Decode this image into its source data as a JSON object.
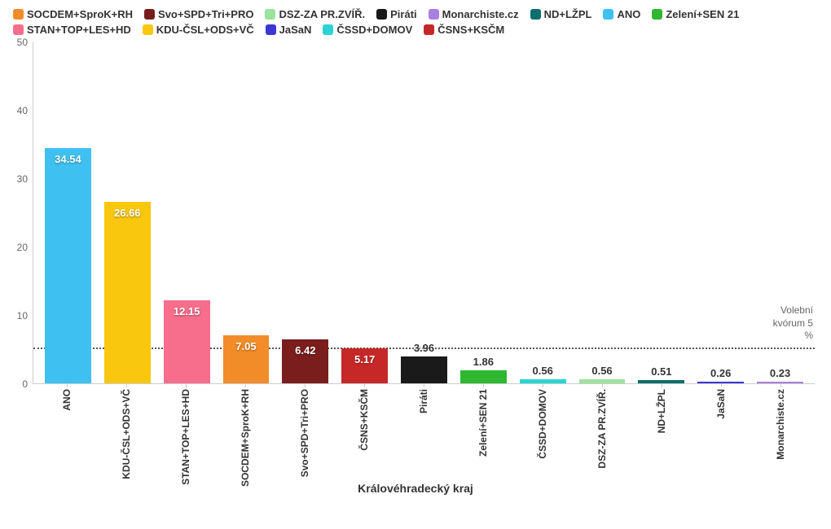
{
  "chart": {
    "type": "bar",
    "title": "Královéhradecký kraj",
    "ymax": 50,
    "yticks": [
      0,
      10,
      20,
      30,
      40,
      50
    ],
    "threshold": {
      "value": 5,
      "label_line1": "Volební",
      "label_line2": "kvórum 5",
      "label_line3": "%"
    },
    "background_color": "#ffffff",
    "axis_color": "#cccccc",
    "threshold_color": "#555555",
    "value_label_inside_color": "#ffffff",
    "value_label_outside_color": "#333333",
    "legend_order": [
      "SOCDEM+SproK+RH",
      "Svo+SPD+Tri+PRO",
      "DSZ-ZA PR.ZVÍŘ.",
      "Piráti",
      "Monarchiste.cz",
      "ND+LŽPL",
      "ANO",
      "Zelení+SEN 21",
      "STAN+TOP+LES+HD",
      "KDU-ČSL+ODS+VČ",
      "JaSaN",
      "ČSSD+DOMOV",
      "ČSNS+KSČM"
    ],
    "colors": {
      "SOCDEM+SproK+RH": "#f28c28",
      "Svo+SPD+Tri+PRO": "#7a1d1d",
      "DSZ-ZA PR.ZVÍŘ.": "#9de29d",
      "Piráti": "#1a1a1a",
      "Monarchiste.cz": "#a97fe0",
      "ND+LŽPL": "#0d6e6e",
      "ANO": "#3ec1f0",
      "Zelení+SEN 21": "#2fb82f",
      "STAN+TOP+LES+HD": "#f76d8c",
      "KDU-ČSL+ODS+VČ": "#f9c80e",
      "JaSaN": "#3b37d6",
      "ČSSD+DOMOV": "#2ad4d4",
      "ČSNS+KSČM": "#c62828"
    },
    "bars": [
      {
        "name": "ANO",
        "value": 34.54
      },
      {
        "name": "KDU-ČSL+ODS+VČ",
        "value": 26.66
      },
      {
        "name": "STAN+TOP+LES+HD",
        "value": 12.15
      },
      {
        "name": "SOCDEM+SproK+RH",
        "value": 7.05
      },
      {
        "name": "Svo+SPD+Tri+PRO",
        "value": 6.42
      },
      {
        "name": "ČSNS+KSČM",
        "value": 5.17
      },
      {
        "name": "Piráti",
        "value": 3.96
      },
      {
        "name": "Zelení+SEN 21",
        "value": 1.86
      },
      {
        "name": "ČSSD+DOMOV",
        "value": 0.56
      },
      {
        "name": "DSZ-ZA PR.ZVÍŘ.",
        "value": 0.56
      },
      {
        "name": "ND+LŽPL",
        "value": 0.51
      },
      {
        "name": "JaSaN",
        "value": 0.26
      },
      {
        "name": "Monarchiste.cz",
        "value": 0.23
      }
    ]
  }
}
